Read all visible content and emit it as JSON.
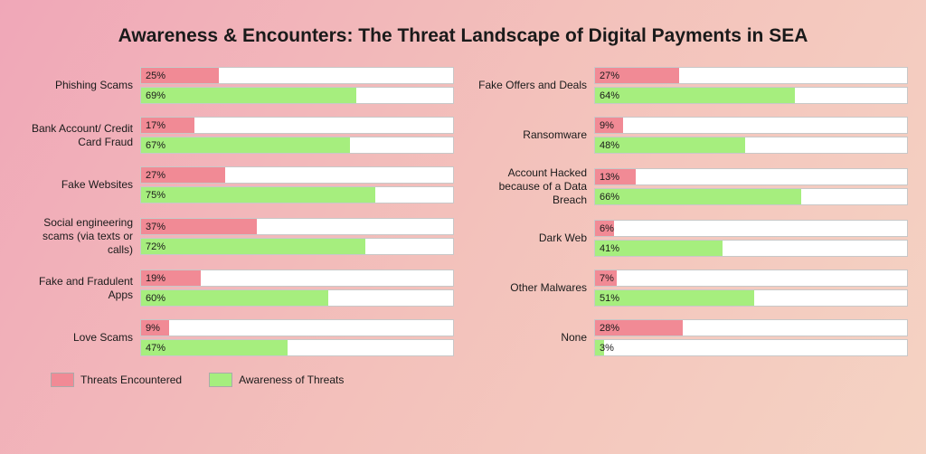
{
  "title": "Awareness & Encounters: The Threat Landscape of Digital Payments in SEA",
  "colors": {
    "encountered": "#f18a95",
    "awareness": "#a6ee7e",
    "bar_bg": "#ffffff",
    "bar_border": "#c8c8c8",
    "text": "#1a1a1a"
  },
  "legend": {
    "encountered": "Threats Encountered",
    "awareness": "Awareness of Threats"
  },
  "max_pct_scale": 100,
  "left": [
    {
      "label": "Phishing Scams",
      "encountered": 25,
      "awareness": 69
    },
    {
      "label": "Bank Account/\nCredit Card Fraud",
      "encountered": 17,
      "awareness": 67
    },
    {
      "label": "Fake Websites",
      "encountered": 27,
      "awareness": 75
    },
    {
      "label": "Social engineering scams  (via texts or calls)",
      "encountered": 37,
      "awareness": 72
    },
    {
      "label": "Fake and Fradulent Apps",
      "encountered": 19,
      "awareness": 60
    },
    {
      "label": "Love Scams",
      "encountered": 9,
      "awareness": 47
    }
  ],
  "right": [
    {
      "label": "Fake Offers\nand Deals",
      "encountered": 27,
      "awareness": 64
    },
    {
      "label": "Ransomware",
      "encountered": 9,
      "awareness": 48
    },
    {
      "label": "Account Hacked because of a Data Breach",
      "encountered": 13,
      "awareness": 66
    },
    {
      "label": "Dark Web",
      "encountered": 6,
      "awareness": 41
    },
    {
      "label": "Other Malwares",
      "encountered": 7,
      "awareness": 51
    },
    {
      "label": "None",
      "encountered": 28,
      "awareness": 3
    }
  ]
}
